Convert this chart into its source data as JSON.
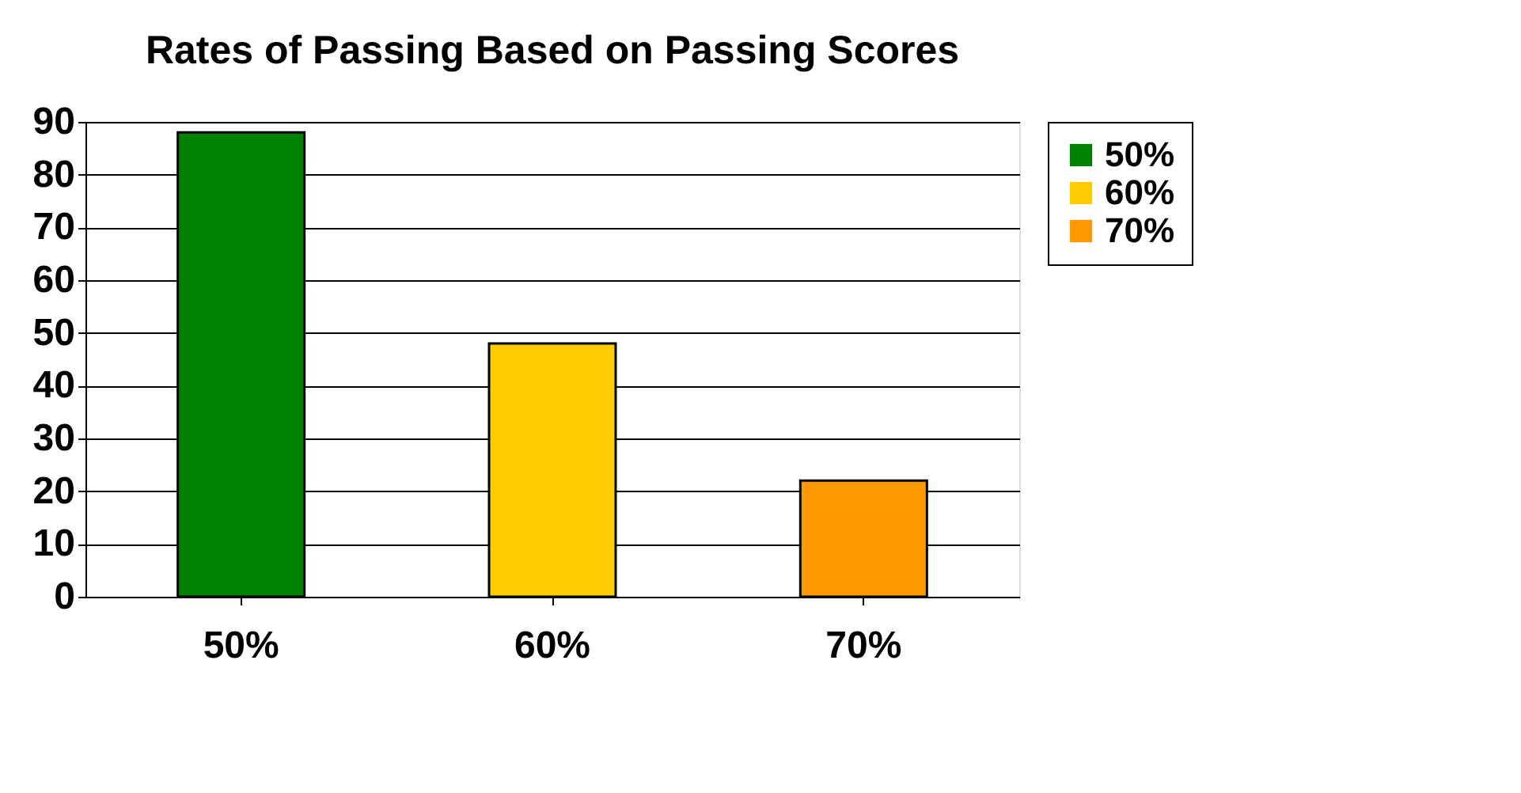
{
  "chart_data": {
    "type": "bar",
    "title": "Rates of Passing Based on Passing Scores",
    "categories": [
      "50%",
      "60%",
      "70%"
    ],
    "series": [
      {
        "name": "50%",
        "color": "#008000",
        "values": [
          88,
          null,
          null
        ]
      },
      {
        "name": "60%",
        "color": "#ffcc00",
        "values": [
          null,
          48,
          null
        ]
      },
      {
        "name": "70%",
        "color": "#ff9900",
        "values": [
          null,
          null,
          22
        ]
      }
    ],
    "stacked": true,
    "ylim": [
      0,
      90
    ],
    "yticks": [
      0,
      10,
      20,
      30,
      40,
      50,
      60,
      70,
      80,
      90
    ],
    "grid": "y",
    "legend": "right"
  }
}
